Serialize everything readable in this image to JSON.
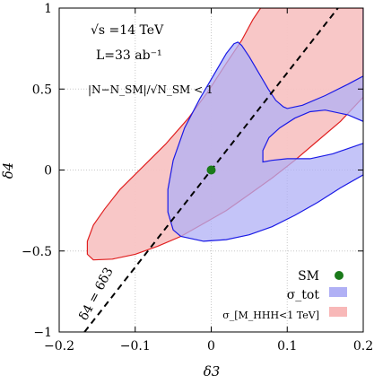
{
  "chart_data": {
    "type": "area",
    "title": "",
    "xlabel": "δ3",
    "ylabel": "δ4",
    "xlim": [
      -0.2,
      0.2
    ],
    "ylim": [
      -1,
      1
    ],
    "x_ticks": [
      -0.2,
      -0.1,
      0,
      0.1,
      0.2
    ],
    "x_tick_labels": [
      "−0.2",
      "−0.1",
      "0",
      "0.1",
      "0.2"
    ],
    "y_ticks": [
      -1,
      -0.5,
      0,
      0.5,
      1
    ],
    "y_tick_labels": [
      "−1",
      "−0.5",
      "0",
      "0.5",
      "1"
    ],
    "grid": true,
    "legend_position": "bottom-right",
    "annotations": {
      "energy": "√s =14 TeV",
      "lumi": "L=33 ab⁻¹",
      "criterion": "|N−N_SM|/√N_SM < 1",
      "line_label": "δ4 = 6δ3"
    },
    "legend": [
      {
        "label": "SM",
        "color": "#1a7a1a",
        "marker": "circle"
      },
      {
        "label": "σ_tot",
        "color": "#b0b0f5",
        "marker": "box"
      },
      {
        "label": "σ_[M_HHH<1 TeV]",
        "color": "#f8b8b8",
        "marker": "box"
      }
    ],
    "series": [
      {
        "name": "σ_[M_HHH<1 TeV]",
        "fill": "#f8c4c4",
        "stroke": "#e02020",
        "outer": [
          [
            -0.155,
            -0.555
          ],
          [
            -0.163,
            -0.52
          ],
          [
            -0.163,
            -0.44
          ],
          [
            -0.155,
            -0.34
          ],
          [
            -0.14,
            -0.24
          ],
          [
            -0.12,
            -0.12
          ],
          [
            -0.09,
            0.02
          ],
          [
            -0.06,
            0.16
          ],
          [
            -0.03,
            0.32
          ],
          [
            -0.005,
            0.48
          ],
          [
            0.02,
            0.66
          ],
          [
            0.04,
            0.8
          ],
          [
            0.055,
            0.93
          ],
          [
            0.065,
            1.0
          ],
          [
            0.2,
            1.0
          ],
          [
            0.2,
            0.45
          ],
          [
            0.17,
            0.3
          ],
          [
            0.14,
            0.18
          ],
          [
            0.11,
            0.06
          ],
          [
            0.08,
            -0.05
          ],
          [
            0.05,
            -0.15
          ],
          [
            0.02,
            -0.25
          ],
          [
            -0.01,
            -0.33
          ],
          [
            -0.04,
            -0.41
          ],
          [
            -0.07,
            -0.47
          ],
          [
            -0.1,
            -0.52
          ],
          [
            -0.13,
            -0.55
          ],
          [
            -0.155,
            -0.555
          ]
        ]
      },
      {
        "name": "σ_tot",
        "fill": "#b0b0f5",
        "stroke": "#1a1ae6",
        "outer": [
          [
            -0.05,
            -0.37
          ],
          [
            -0.057,
            -0.26
          ],
          [
            -0.057,
            -0.12
          ],
          [
            -0.05,
            0.06
          ],
          [
            -0.035,
            0.26
          ],
          [
            -0.015,
            0.44
          ],
          [
            0.005,
            0.6
          ],
          [
            0.02,
            0.72
          ],
          [
            0.03,
            0.78
          ],
          [
            0.035,
            0.79
          ],
          [
            0.04,
            0.77
          ],
          [
            0.05,
            0.7
          ],
          [
            0.065,
            0.58
          ],
          [
            0.075,
            0.5
          ],
          [
            0.085,
            0.43
          ],
          [
            0.095,
            0.39
          ],
          [
            0.1,
            0.38
          ],
          [
            0.12,
            0.4
          ],
          [
            0.15,
            0.46
          ],
          [
            0.18,
            0.53
          ],
          [
            0.2,
            0.58
          ],
          [
            0.2,
            0.58
          ],
          [
            0.2,
            1.0
          ],
          [
            0.2,
            1.0
          ],
          [
            0.2,
            0.3
          ],
          [
            0.18,
            0.34
          ],
          [
            0.15,
            0.37
          ],
          [
            0.13,
            0.36
          ],
          [
            0.11,
            0.32
          ],
          [
            0.09,
            0.26
          ],
          [
            0.076,
            0.2
          ],
          [
            0.068,
            0.12
          ],
          [
            0.068,
            0.05
          ],
          [
            0.08,
            0.06
          ],
          [
            0.1,
            0.07
          ],
          [
            0.13,
            0.07
          ],
          [
            0.16,
            0.1
          ],
          [
            0.2,
            0.165
          ],
          [
            0.2,
            0.165
          ],
          [
            0.2,
            -0.03
          ],
          [
            0.17,
            -0.11
          ],
          [
            0.14,
            -0.2
          ],
          [
            0.11,
            -0.28
          ],
          [
            0.08,
            -0.35
          ],
          [
            0.05,
            -0.4
          ],
          [
            0.02,
            -0.43
          ],
          [
            -0.01,
            -0.44
          ],
          [
            -0.04,
            -0.41
          ],
          [
            -0.05,
            -0.37
          ]
        ]
      }
    ],
    "reference_line": {
      "name": "δ4 = 6δ3",
      "slope": 6,
      "intercept": 0,
      "style": "dashed"
    },
    "sm_point": {
      "x": 0,
      "y": 0,
      "label": "SM"
    }
  }
}
